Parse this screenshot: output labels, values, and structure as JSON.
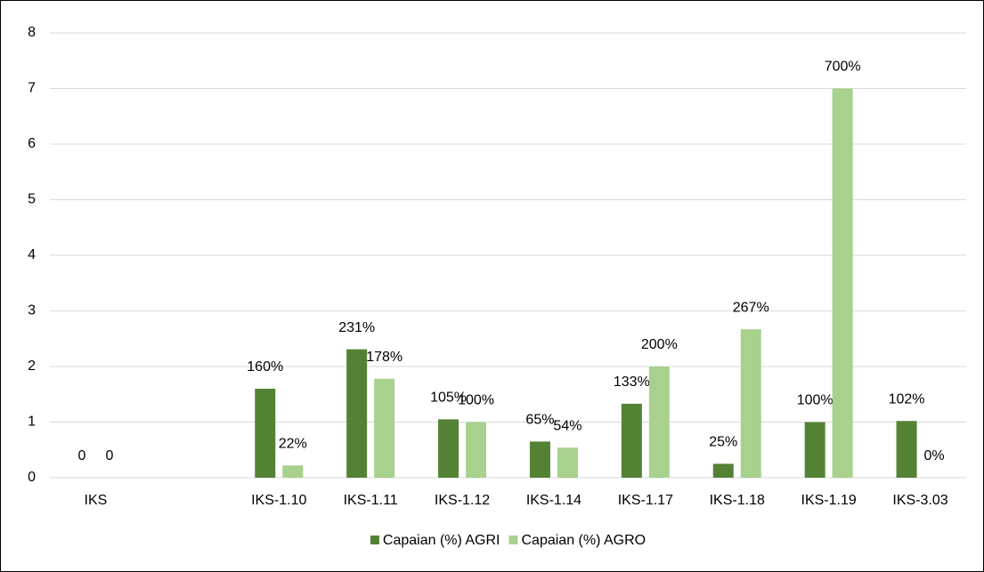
{
  "chart_data": {
    "type": "bar",
    "categories": [
      "IKS",
      null,
      "IKS-1.10",
      "IKS-1.11",
      "IKS-1.12",
      "IKS-1.14",
      "IKS-1.17",
      "IKS-1.18",
      "IKS-1.19",
      "IKS-3.03"
    ],
    "series": [
      {
        "name": "Capaian (%) AGRI",
        "color": "#548235",
        "values": [
          0,
          null,
          1.6,
          2.31,
          1.05,
          0.65,
          1.33,
          0.25,
          1.0,
          1.02
        ],
        "value_labels": [
          "0",
          null,
          "160%",
          "231%",
          "105%",
          "65%",
          "133%",
          "25%",
          "100%",
          "102%"
        ]
      },
      {
        "name": "Capaian (%) AGRO",
        "color": "#a9d18e",
        "values": [
          0,
          null,
          0.22,
          1.78,
          1.0,
          0.54,
          2.0,
          2.67,
          7.0,
          0
        ],
        "value_labels": [
          "0",
          null,
          "22%",
          "178%",
          "100%",
          "54%",
          "200%",
          "267%",
          "700%",
          "0%"
        ]
      }
    ],
    "ylim": [
      0,
      8
    ],
    "yticks": [
      0,
      1,
      2,
      3,
      4,
      5,
      6,
      7,
      8
    ],
    "grid": true,
    "legend": "bottom"
  }
}
